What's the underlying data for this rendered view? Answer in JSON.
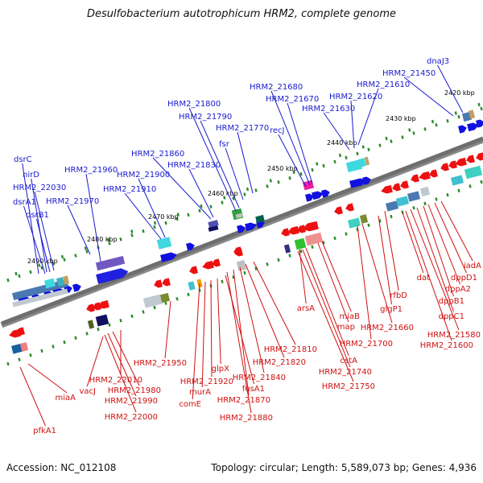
{
  "title": "Desulfobacterium autotrophicum HRM2, complete genome",
  "footer": {
    "accession": "Accession: NC_012108",
    "summary": "Topology: circular; Length: 5,589,073 bp; Genes: 4,936"
  },
  "scale_labels": [
    "2420 kbp",
    "2430 kbp",
    "2440 kbp",
    "2450 kbp",
    "2460 kbp",
    "2470 kbp",
    "2480 kbp",
    "2490 kbp"
  ],
  "forward_genes": [
    "dnaJ3",
    "HRM2_21450",
    "HRM2_21610",
    "HRM2_21620",
    "HRM2_21630",
    "HRM2_21670",
    "HRM2_21680",
    "recJ",
    "HRM2_21770",
    "fsr",
    "HRM2_21790",
    "HRM2_21800",
    "HRM2_21830",
    "HRM2_21860",
    "HRM2_21900",
    "HRM2_21910",
    "HRM2_21960",
    "HRM2_21970",
    "dsrC",
    "nirD",
    "HRM2_22030",
    "dsrA1",
    "dsrB1"
  ],
  "reverse_genes": [
    "iadA",
    "dppD1",
    "dppA2",
    "dppB1",
    "dppC1",
    "HRM2_21580",
    "HRM2_21600",
    "dat",
    "rfbD",
    "glgP1",
    "HRM2_21660",
    "HRM2_21700",
    "miaB",
    "map",
    "arsA",
    "cstA",
    "HRM2_21740",
    "HRM2_21750",
    "HRM2_21810",
    "HRM2_21820",
    "HRM2_21840",
    "HRM2_21870",
    "HRM2_21880",
    "fusA1",
    "glpX",
    "HRM2_21920",
    "murA",
    "comE",
    "HRM2_21950",
    "HRM2_22010",
    "HRM2_21980",
    "HRM2_21990",
    "HRM2_22000",
    "vacJ",
    "miaA",
    "pfkA1"
  ]
}
